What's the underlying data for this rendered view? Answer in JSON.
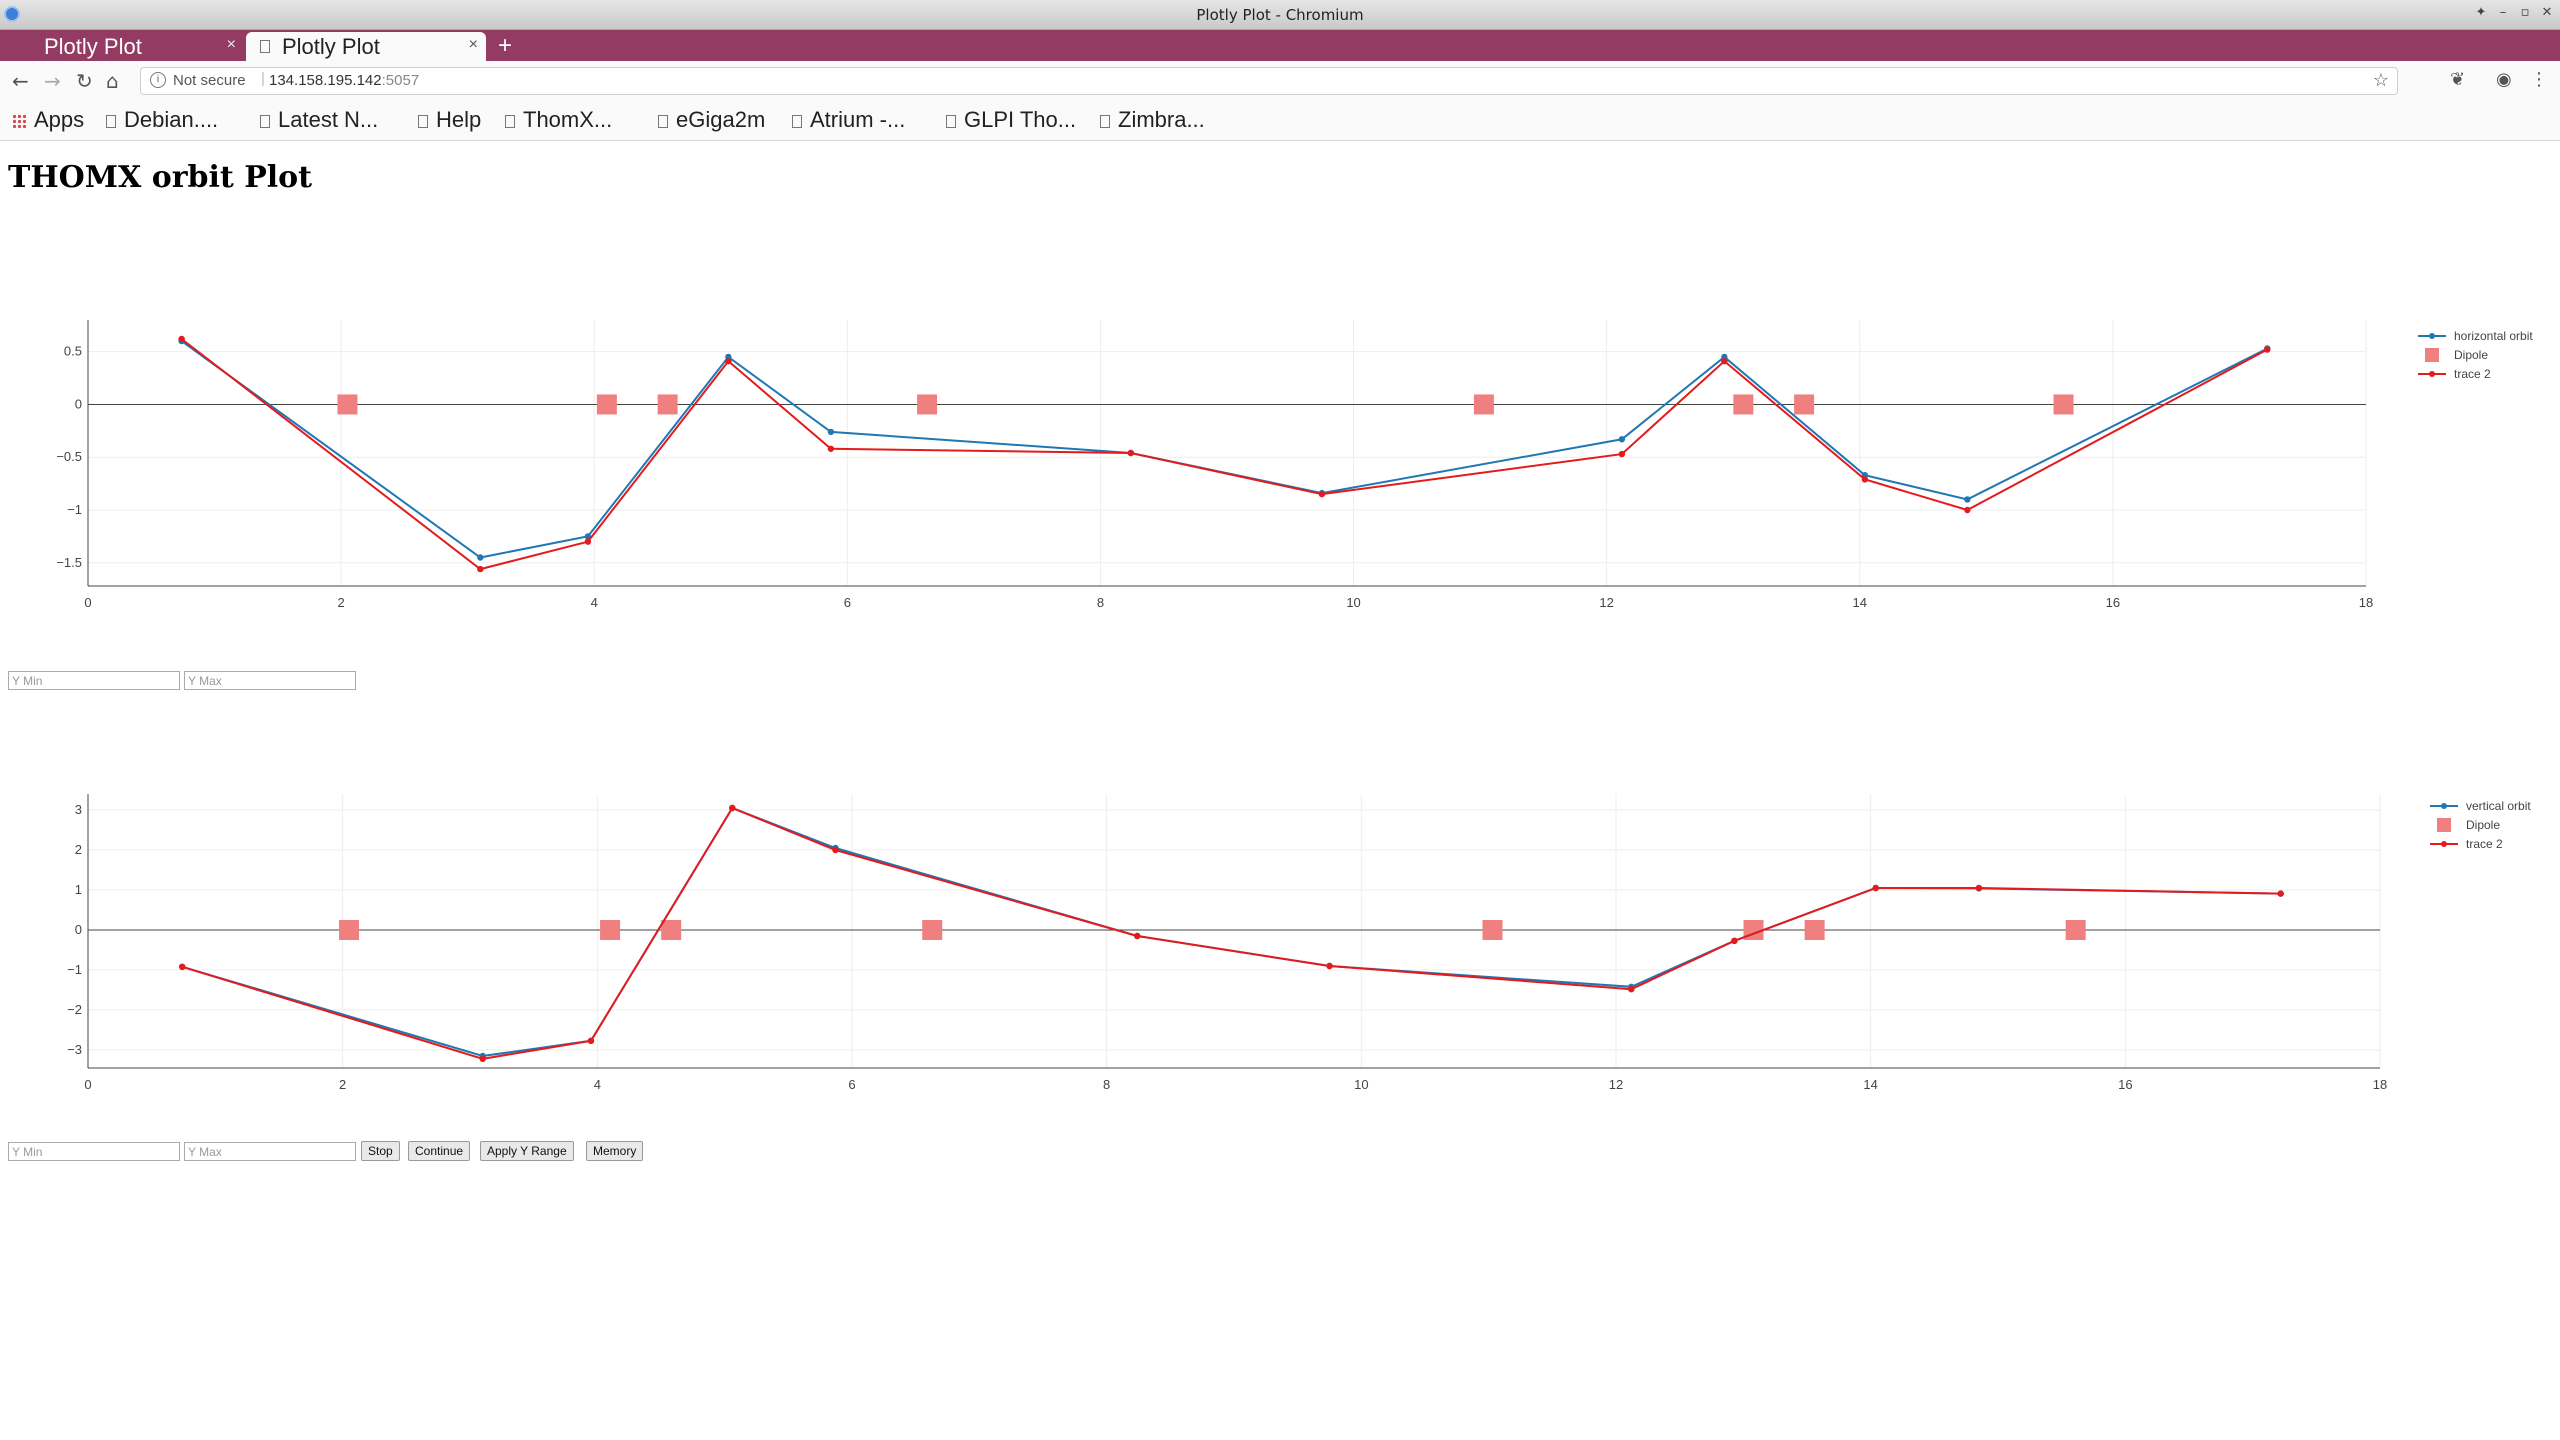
{
  "window": {
    "title": "Plotly Plot - Chromium"
  },
  "tabs": [
    {
      "label": "Plotly Plot",
      "close": "×"
    },
    {
      "label": "Plotly Plot",
      "close": "×"
    }
  ],
  "new_tab": "+",
  "address": {
    "not_secure": "Not secure",
    "separator": "|",
    "host": "134.158.195.142",
    "port": ":5057"
  },
  "bookmarks": [
    "Apps",
    "Debian....",
    "Latest N...",
    "Help",
    "ThomX...",
    "eGiga2m",
    "Atrium -...",
    "GLPI Tho...",
    "Zimbra..."
  ],
  "page": {
    "title": "THOMX orbit Plot"
  },
  "plot1_controls": {
    "ymin_placeholder": "Y Min",
    "ymax_placeholder": "Y Max"
  },
  "plot2_controls": {
    "ymin_placeholder": "Y Min",
    "ymax_placeholder": "Y Max",
    "stop": "Stop",
    "continue": "Continue",
    "apply": "Apply Y Range",
    "memory": "Memory"
  },
  "colors": {
    "orbit": "#1f77b4",
    "trace2": "#e41a1c",
    "dipole": "#f08080",
    "tabstrip": "#933b62"
  },
  "chart_data": [
    {
      "type": "line",
      "xlim": [
        0,
        18
      ],
      "ylim": [
        -1.72,
        0.8
      ],
      "xticks": [
        0,
        2,
        4,
        6,
        8,
        10,
        12,
        14,
        16,
        18
      ],
      "yticks": [
        0.5,
        0,
        -0.5,
        -1,
        -1.5
      ],
      "ytick_labels": [
        "0.5",
        "0",
        "−0.5",
        "−1",
        "−1.5"
      ],
      "legend_position": "top-right",
      "series": [
        {
          "name": "horizontal orbit",
          "color": "#1f77b4",
          "mode": "lines+markers",
          "x": [
            0.74,
            3.1,
            3.95,
            5.06,
            5.87,
            8.24,
            9.75,
            12.12,
            12.93,
            14.04,
            14.85,
            17.22
          ],
          "y": [
            0.6,
            -1.45,
            -1.25,
            0.45,
            -0.26,
            -0.46,
            -0.84,
            -0.33,
            0.45,
            -0.67,
            -0.9,
            0.53
          ]
        },
        {
          "name": "Dipole",
          "color": "#f08080",
          "mode": "markers",
          "x": [
            2.05,
            4.1,
            4.58,
            6.63,
            11.03,
            13.08,
            13.56,
            15.61
          ],
          "y": [
            0,
            0,
            0,
            0,
            0,
            0,
            0,
            0
          ]
        },
        {
          "name": "trace 2",
          "color": "#e41a1c",
          "mode": "lines+markers",
          "x": [
            0.74,
            3.1,
            3.95,
            5.06,
            5.87,
            8.24,
            9.75,
            12.12,
            12.93,
            14.04,
            14.85,
            17.22
          ],
          "y": [
            0.62,
            -1.56,
            -1.3,
            0.41,
            -0.42,
            -0.46,
            -0.85,
            -0.47,
            0.41,
            -0.71,
            -1.0,
            0.52
          ]
        }
      ]
    },
    {
      "type": "line",
      "xlim": [
        0,
        18
      ],
      "ylim": [
        -3.45,
        3.4
      ],
      "xticks": [
        0,
        2,
        4,
        6,
        8,
        10,
        12,
        14,
        16,
        18
      ],
      "yticks": [
        3,
        2,
        1,
        0,
        -1,
        -2,
        -3
      ],
      "ytick_labels": [
        "3",
        "2",
        "1",
        "0",
        "−1",
        "−2",
        "−3"
      ],
      "legend_position": "top-right",
      "series": [
        {
          "name": "vertical orbit",
          "color": "#1f77b4",
          "mode": "lines+markers",
          "x": [
            0.74,
            3.1,
            3.95,
            5.06,
            5.87,
            8.24,
            9.75,
            12.12,
            12.93,
            14.04,
            14.85,
            17.22
          ],
          "y": [
            -0.92,
            -3.15,
            -2.77,
            3.05,
            2.05,
            -0.15,
            -0.9,
            -1.42,
            -0.27,
            1.05,
            1.04,
            0.91
          ]
        },
        {
          "name": "Dipole",
          "color": "#f08080",
          "mode": "markers",
          "x": [
            2.05,
            4.1,
            4.58,
            6.63,
            11.03,
            13.08,
            13.56,
            15.61
          ],
          "y": [
            0,
            0,
            0,
            0,
            0,
            0,
            0,
            0
          ]
        },
        {
          "name": "trace 2",
          "color": "#e41a1c",
          "mode": "lines+markers",
          "x": [
            0.74,
            3.1,
            3.95,
            5.06,
            5.87,
            8.24,
            9.75,
            12.12,
            12.93,
            14.04,
            14.85,
            17.22
          ],
          "y": [
            -0.92,
            -3.22,
            -2.77,
            3.05,
            2.0,
            -0.15,
            -0.9,
            -1.48,
            -0.27,
            1.05,
            1.05,
            0.91
          ]
        }
      ]
    }
  ]
}
